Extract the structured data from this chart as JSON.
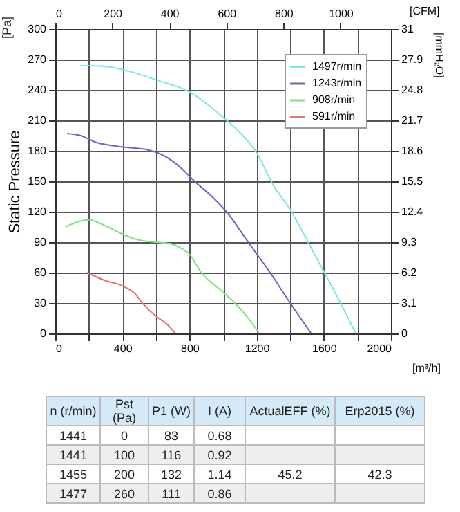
{
  "chart_data": [
    {
      "type": "line",
      "ylabel": "Static Pressure",
      "xlabel": "[m³/h]",
      "x2label": "[CFM]",
      "y2label": "[mmH₂O]",
      "annotations": [
        "[Pa]"
      ],
      "xlim": [
        0,
        2000
      ],
      "xticks": [
        0,
        {
          "value": 200,
          "label": null
        },
        400,
        {
          "value": 600,
          "label": null
        },
        800,
        {
          "value": 1000,
          "label": null
        },
        1200,
        {
          "value": 1400,
          "label": null
        },
        1600,
        {
          "value": 1800,
          "label": null
        },
        2000
      ],
      "x2lim": [
        0,
        1177
      ],
      "x2ticks": [
        0,
        200,
        400,
        600,
        800,
        1000
      ],
      "ylim": [
        0,
        300
      ],
      "yticks": [
        0,
        30,
        60,
        90,
        120,
        150,
        180,
        210,
        240,
        270,
        300
      ],
      "y2lim": [
        0,
        31
      ],
      "y2ticks": [
        0,
        3.1,
        6.2,
        9.3,
        12.4,
        15.5,
        18.6,
        21.7,
        24.8,
        27.9,
        31
      ],
      "grid": true,
      "legend": "top right",
      "line_style": "solid",
      "series": [
        {
          "name": "1497r/min",
          "color": "#7fe6e6",
          "x": [
            150,
            300,
            450,
            600,
            800,
            1000,
            1100,
            1200,
            1300,
            1400,
            1500,
            1600,
            1700,
            1790
          ],
          "values": [
            264,
            263,
            258,
            250,
            238,
            213,
            198,
            178,
            146,
            122,
            92,
            61,
            30,
            0
          ]
        },
        {
          "name": "1243r/min",
          "color": "#6464c4",
          "x": [
            70,
            150,
            250,
            350,
            450,
            550,
            650,
            750,
            830,
            920,
            1020,
            1150,
            1280,
            1400,
            1525
          ],
          "values": [
            197,
            195,
            188,
            185,
            183,
            181,
            175,
            163,
            150,
            137,
            120,
            90,
            60,
            30,
            0
          ]
        },
        {
          "name": "908r/min",
          "color": "#84e084",
          "x": [
            60,
            200,
            300,
            400,
            500,
            600,
            700,
            750,
            800,
            870,
            970,
            1070,
            1150,
            1215
          ],
          "values": [
            105,
            112,
            106,
            98,
            92,
            90,
            88,
            84,
            78,
            60,
            45,
            30,
            15,
            0
          ]
        },
        {
          "name": "591r/min",
          "color": "#e07474",
          "x": [
            190,
            300,
            400,
            470,
            530,
            600,
            660,
            716
          ],
          "values": [
            60,
            52,
            47,
            40,
            28,
            17,
            10,
            0
          ]
        }
      ]
    },
    {
      "type": "other",
      "categories": [
        "n (r/min)",
        "Pst (Pa)",
        "P1 (W)",
        "I (A)",
        "ActualEFF (%)",
        "Erp2015 (%)"
      ],
      "cells": [
        [
          "1441",
          "0",
          "83",
          "0.68",
          null,
          null
        ],
        [
          "1441",
          "100",
          "116",
          "0.92",
          null,
          null
        ],
        [
          "1455",
          "200",
          "132",
          "1.14",
          "45.2",
          "42.3"
        ],
        [
          "1477",
          "260",
          "111",
          "0.86",
          null,
          null
        ]
      ]
    }
  ]
}
